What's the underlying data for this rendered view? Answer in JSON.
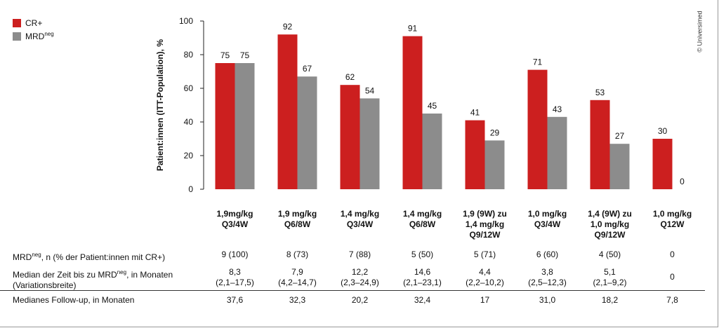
{
  "legend": {
    "cr": {
      "label": "CR+",
      "color": "#cc1f1f"
    },
    "mrd": {
      "label": "MRD",
      "sup": "neg",
      "color": "#8c8c8c"
    }
  },
  "copyright": "© Universimed",
  "chart_data": {
    "type": "bar",
    "ylabel": "Patient:innen (ITT-Population), %",
    "ylim": [
      0,
      100
    ],
    "yticks": [
      0,
      20,
      40,
      60,
      80,
      100
    ],
    "categories": [
      [
        "1,9mg/kg",
        "Q3/4W"
      ],
      [
        "1,9 mg/kg",
        "Q6/8W"
      ],
      [
        "1,4 mg/kg",
        "Q3/4W"
      ],
      [
        "1,4 mg/kg",
        "Q6/8W"
      ],
      [
        "1,9 (9W) zu",
        "1,4 mg/kg",
        "Q9/12W"
      ],
      [
        "1,0 mg/kg",
        "Q3/4W"
      ],
      [
        "1,4 (9W) zu",
        "1,0 mg/kg",
        "Q9/12W"
      ],
      [
        "1,0 mg/kg",
        "Q12W"
      ]
    ],
    "series": [
      {
        "name": "CR+",
        "color": "#cc1f1f",
        "values": [
          75,
          92,
          62,
          91,
          41,
          71,
          53,
          30
        ]
      },
      {
        "name": "MRDneg",
        "color": "#8c8c8c",
        "values": [
          75,
          67,
          54,
          45,
          29,
          43,
          27,
          0
        ]
      }
    ],
    "grid": false,
    "legend_position": "top-left"
  },
  "table": {
    "rows": [
      {
        "label": "MRD",
        "sup": "neg",
        "label_rest": ", n (% der Patient:innen mit CR+)",
        "cells": [
          [
            "9 (100)"
          ],
          [
            "8 (73)"
          ],
          [
            "7 (88)"
          ],
          [
            "5 (50)"
          ],
          [
            "5 (71)"
          ],
          [
            "6 (60)"
          ],
          [
            "4 (50)"
          ],
          [
            "0"
          ]
        ]
      },
      {
        "label": "Median der Zeit bis zu MRD",
        "sup": "neg",
        "label_rest": ", in Monaten",
        "label_line2": "(Variationsbreite)",
        "cells": [
          [
            "8,3",
            "(2,1–17,5)"
          ],
          [
            "7,9",
            "(4,2–14,7)"
          ],
          [
            "12,2",
            "(2,3–24,9)"
          ],
          [
            "14,6",
            "(2,1–23,1)"
          ],
          [
            "4,4",
            "(2,2–10,2)"
          ],
          [
            "3,8",
            "(2,5–12,3)"
          ],
          [
            "5,1",
            "(2,1–9,2)"
          ],
          [
            "0"
          ]
        ]
      },
      {
        "label": "Medianes Follow-up, in Monaten",
        "sup": "",
        "label_rest": "",
        "cells": [
          [
            "37,6"
          ],
          [
            "32,3"
          ],
          [
            "20,2"
          ],
          [
            "32,4"
          ],
          [
            "17"
          ],
          [
            "31,0"
          ],
          [
            "18,2"
          ],
          [
            "7,8"
          ]
        ]
      }
    ]
  }
}
